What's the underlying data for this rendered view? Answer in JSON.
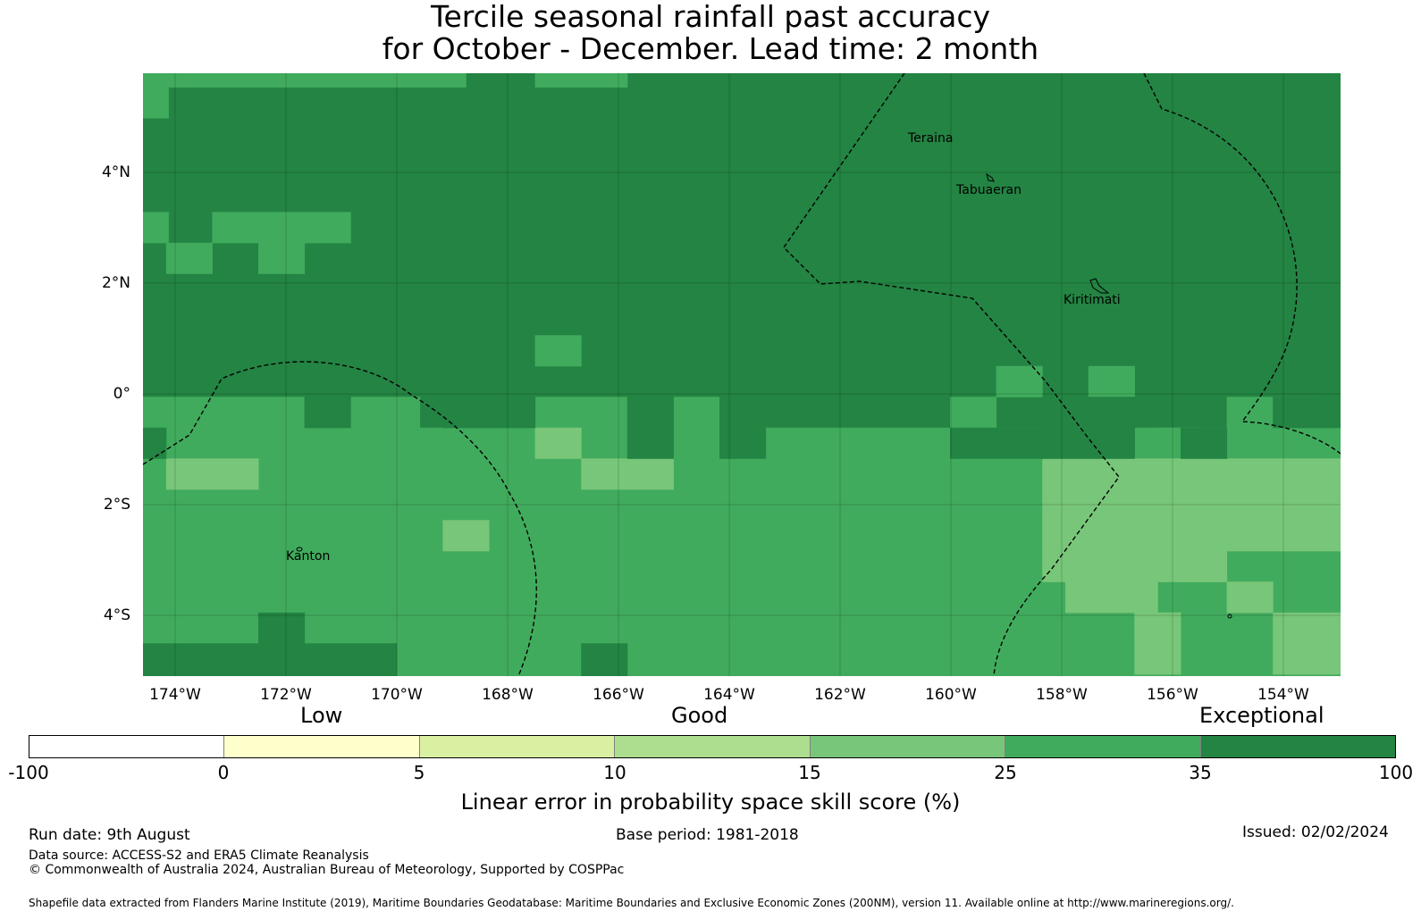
{
  "title": {
    "line1": "Tercile seasonal rainfall past accuracy",
    "line2": "for October - December. Lead time: 2 month"
  },
  "map": {
    "lat_labels": [
      "4°N",
      "2°N",
      "0°",
      "2°S",
      "4°S"
    ],
    "lon_labels": [
      "174°W",
      "172°W",
      "170°W",
      "168°W",
      "166°W",
      "164°W",
      "162°W",
      "160°W",
      "158°W",
      "156°W",
      "154°W"
    ],
    "places": [
      "Teraina",
      "Tabuaeran",
      "Kiritimati",
      "Kanton"
    ],
    "colors": {
      "c35_100": "#238443",
      "c25_35": "#41ab5d",
      "c15_25": "#78c679",
      "c10_15": "#addd8e",
      "c5_10": "#d9f0a3",
      "c0_5": "#ffffcc",
      "cneg": "#ffffff"
    }
  },
  "legend": {
    "skill_labels": {
      "low": "Low",
      "good": "Good",
      "exceptional": "Exceptional"
    },
    "ticks": [
      "-100",
      "0",
      "5",
      "10",
      "15",
      "25",
      "35",
      "100"
    ],
    "colors": [
      "#ffffff",
      "#ffffcc",
      "#d9f0a3",
      "#addd8e",
      "#78c679",
      "#41ab5d",
      "#238443"
    ],
    "title": "Linear error in probability space skill score (%)"
  },
  "footer": {
    "run_date": "Run date: 9th August",
    "base_period": "Base period: 1981-2018",
    "issued": "Issued: 02/02/2024",
    "data_source": "Data source: ACCESS-S2 and ERA5 Climate Reanalysis",
    "copyright": "© Commonwealth of Australia 2024, Australian Bureau of Meteorology, Supported by COSPPac",
    "shapefile": "Shapefile data extracted from Flanders Marine Institute (2019), Maritime Boundaries Geodatabase: Maritime Boundaries and Exclusive Economic Zones (200NM), version 11. Available online at http://www.marineregions.org/."
  }
}
